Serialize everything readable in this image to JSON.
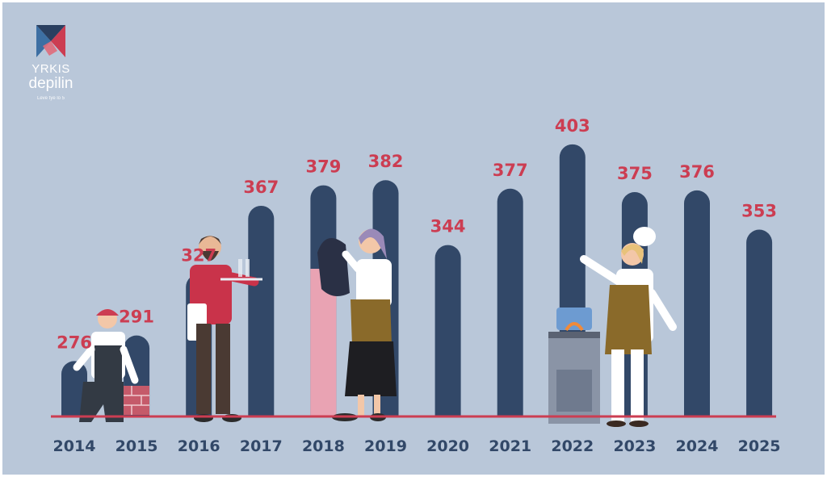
{
  "logo": {
    "name": "YRKIS",
    "subname": "depilin",
    "tagline": "Leve tye lo 5"
  },
  "colors": {
    "bar": "#324868",
    "value_label": "#cc3d52",
    "year_label": "#324868",
    "baseline": "#cc3d52",
    "highlight_bar": "#e9a3b3",
    "background": "#b9c7d9"
  },
  "chart_data": {
    "type": "bar",
    "title": "",
    "xlabel": "",
    "ylabel": "",
    "categories": [
      "2014",
      "2015",
      "2016",
      "2017",
      "2018",
      "2019",
      "2020",
      "2021",
      "2022",
      "2023",
      "2024",
      "2025"
    ],
    "values": [
      276,
      291,
      327,
      367,
      379,
      382,
      344,
      377,
      403,
      375,
      376,
      353
    ],
    "highlighted_category": "2018",
    "data_labels": true,
    "grid": false,
    "legend": "none",
    "illustrations": [
      "bricklayer",
      "waiter",
      "hairdresser",
      "chef"
    ]
  }
}
